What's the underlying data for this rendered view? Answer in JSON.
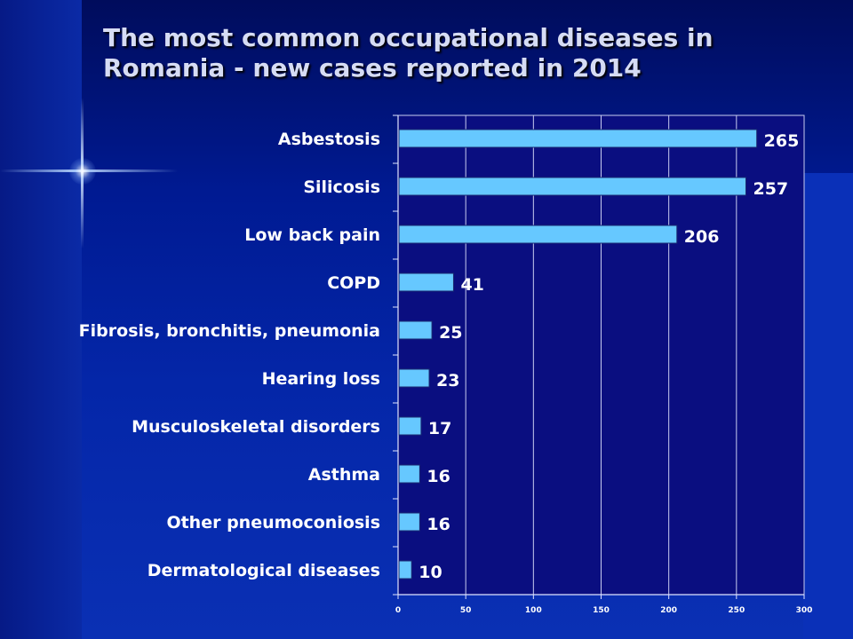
{
  "slide": {
    "title_line1": "The most common occupational diseases in",
    "title_line2": "Romania - new cases reported in 2014",
    "colors": {
      "title_text": "#d6dcf4",
      "bar_fill": "#66c8ff",
      "label_text": "#ffffff",
      "plot_background": "#0a0e80"
    }
  },
  "chart_data": {
    "type": "bar",
    "orientation": "horizontal",
    "title": "The most common occupational diseases in Romania - new cases reported in 2014",
    "categories": [
      "Asbestosis",
      "Silicosis",
      "Low back pain",
      "COPD",
      "Fibrosis, bronchitis, pneumonia",
      "Hearing loss",
      "Musculoskeletal disorders",
      "Asthma",
      "Other pneumoconiosis",
      "Dermatological diseases"
    ],
    "values": [
      265,
      257,
      206,
      41,
      25,
      23,
      17,
      16,
      16,
      10
    ],
    "data_labels": [
      "265",
      "257",
      "206",
      "41",
      "25",
      "23",
      "17",
      "16",
      "16",
      "10"
    ],
    "xlim": [
      0,
      300
    ],
    "xticks": [
      "0",
      "50",
      "100",
      "150",
      "200",
      "250",
      "300"
    ],
    "grid": true,
    "legend": "none",
    "xlabel": "",
    "ylabel": ""
  }
}
